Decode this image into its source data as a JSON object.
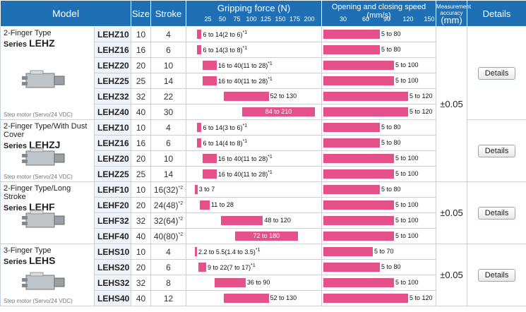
{
  "header": {
    "model": "Model",
    "size": "Size",
    "stroke": "Stroke",
    "gripping_force": "Gripping force (N)",
    "gripping_ticks": [
      "25",
      "50",
      "75",
      "100",
      "125",
      "150",
      "175",
      "200"
    ],
    "speed": "Opening and closing speed (mm/s)",
    "speed_ticks": [
      "30",
      "60",
      "90",
      "120",
      "150"
    ],
    "accuracy": "Measurement accuracy",
    "accuracy_unit": "(mm)",
    "details": "Details"
  },
  "groups": [
    {
      "name": "2-Finger Type",
      "series_prefix": "Series",
      "series": "LEHZ",
      "motor": "Step motor (Servo/24 VDC)",
      "accuracy": "±0.05",
      "details": "Details",
      "rows": [
        {
          "code": "LEHZ10",
          "size": "10",
          "stroke": "4",
          "force_min": 6,
          "force_max": 14,
          "force_label": "6 to 14(2 to 6)",
          "note": "*1",
          "speed_max": 80,
          "speed_label": "5 to 80"
        },
        {
          "code": "LEHZ16",
          "size": "16",
          "stroke": "6",
          "force_min": 6,
          "force_max": 14,
          "force_label": "6 to 14(3 to 8)",
          "note": "*1",
          "speed_max": 80,
          "speed_label": "5 to 80"
        },
        {
          "code": "LEHZ20",
          "size": "20",
          "stroke": "10",
          "force_min": 16,
          "force_max": 40,
          "force_label": "16 to 40(11 to 28)",
          "note": "*1",
          "speed_max": 100,
          "speed_label": "5 to 100"
        },
        {
          "code": "LEHZ25",
          "size": "25",
          "stroke": "14",
          "force_min": 16,
          "force_max": 40,
          "force_label": "16 to 40(11 to 28)",
          "note": "*1",
          "speed_max": 100,
          "speed_label": "5 to 100"
        },
        {
          "code": "LEHZ32",
          "size": "32",
          "stroke": "22",
          "force_min": 52,
          "force_max": 130,
          "force_label": "52 to 130",
          "note": "",
          "speed_max": 120,
          "speed_label": "5 to 120"
        },
        {
          "code": "LEHZ40",
          "size": "40",
          "stroke": "30",
          "force_min": 84,
          "force_max": 210,
          "force_label": "84 to 210",
          "note": "",
          "speed_max": 120,
          "speed_label": "5 to 120",
          "inside": true
        }
      ]
    },
    {
      "name": "2-Finger Type/With Dust Cover",
      "series_prefix": "Series",
      "series": "LEHZJ",
      "motor": "Step motor (Servo/24 VDC)",
      "accuracy": "",
      "details": "Details",
      "rows": [
        {
          "code": "LEHZ10",
          "size": "10",
          "stroke": "4",
          "force_min": 6,
          "force_max": 14,
          "force_label": "6 to 14(3 to 6)",
          "note": "*1",
          "speed_max": 80,
          "speed_label": "5 to 80"
        },
        {
          "code": "LEHZ16",
          "size": "16",
          "stroke": "6",
          "force_min": 6,
          "force_max": 14,
          "force_label": "6 to 14(4 to 8)",
          "note": "*1",
          "speed_max": 80,
          "speed_label": "5 to 80"
        },
        {
          "code": "LEHZ20",
          "size": "20",
          "stroke": "10",
          "force_min": 16,
          "force_max": 40,
          "force_label": "16 to 40(11 to 28)",
          "note": "*1",
          "speed_max": 100,
          "speed_label": "5 to 100"
        },
        {
          "code": "LEHZ25",
          "size": "25",
          "stroke": "14",
          "force_min": 16,
          "force_max": 40,
          "force_label": "16 to 40(11 to 28)",
          "note": "*1",
          "speed_max": 100,
          "speed_label": "5 to 100"
        }
      ]
    },
    {
      "name": "2-Finger Type/Long Stroke",
      "series_prefix": "Series",
      "series": "LEHF",
      "motor": "",
      "accuracy": "±0.05",
      "details": "Details",
      "rows": [
        {
          "code": "LEHF10",
          "size": "10",
          "stroke": "16(32)",
          "stroke_note": "*2",
          "force_min": 3,
          "force_max": 7,
          "force_label": "3 to 7",
          "note": "",
          "speed_max": 80,
          "speed_label": "5 to 80"
        },
        {
          "code": "LEHF20",
          "size": "20",
          "stroke": "24(48)",
          "stroke_note": "*2",
          "force_min": 11,
          "force_max": 28,
          "force_label": "11 to 28",
          "note": "",
          "speed_max": 100,
          "speed_label": "5 to 100"
        },
        {
          "code": "LEHF32",
          "size": "32",
          "stroke": "32(64)",
          "stroke_note": "*2",
          "force_min": 48,
          "force_max": 120,
          "force_label": "48 to 120",
          "note": "",
          "speed_max": 100,
          "speed_label": "5 to 100"
        },
        {
          "code": "LEHF40",
          "size": "40",
          "stroke": "40(80)",
          "stroke_note": "*2",
          "force_min": 72,
          "force_max": 180,
          "force_label": "72 to 180",
          "note": "",
          "speed_max": 100,
          "speed_label": "5 to 100",
          "inside": true
        }
      ]
    },
    {
      "name": "3-Finger Type",
      "series_prefix": "Series",
      "series": "LEHS",
      "motor": "Step motor (Servo/24 VDC)",
      "accuracy": "±0.05",
      "details": "Details",
      "rows": [
        {
          "code": "LEHS10",
          "size": "10",
          "stroke": "4",
          "force_min": 2.2,
          "force_max": 5.5,
          "force_label": "2.2 to 5.5(1.4 to 3.5)",
          "note": "*1",
          "speed_max": 70,
          "speed_label": "5 to 70"
        },
        {
          "code": "LEHS20",
          "size": "20",
          "stroke": "6",
          "force_min": 9,
          "force_max": 22,
          "force_label": "9 to 22(7 to 17)",
          "note": "*1",
          "speed_max": 80,
          "speed_label": "5 to 80"
        },
        {
          "code": "LEHS32",
          "size": "32",
          "stroke": "8",
          "force_min": 36,
          "force_max": 90,
          "force_label": "36 to 90",
          "note": "",
          "speed_max": 100,
          "speed_label": "5 to 100"
        },
        {
          "code": "LEHS40",
          "size": "40",
          "stroke": "12",
          "force_min": 52,
          "force_max": 130,
          "force_label": "52 to 130",
          "note": "",
          "speed_max": 120,
          "speed_label": "5 to 120"
        }
      ]
    }
  ],
  "colors": {
    "header_bg": "#1f6fb5",
    "bar": "#e4508a"
  }
}
